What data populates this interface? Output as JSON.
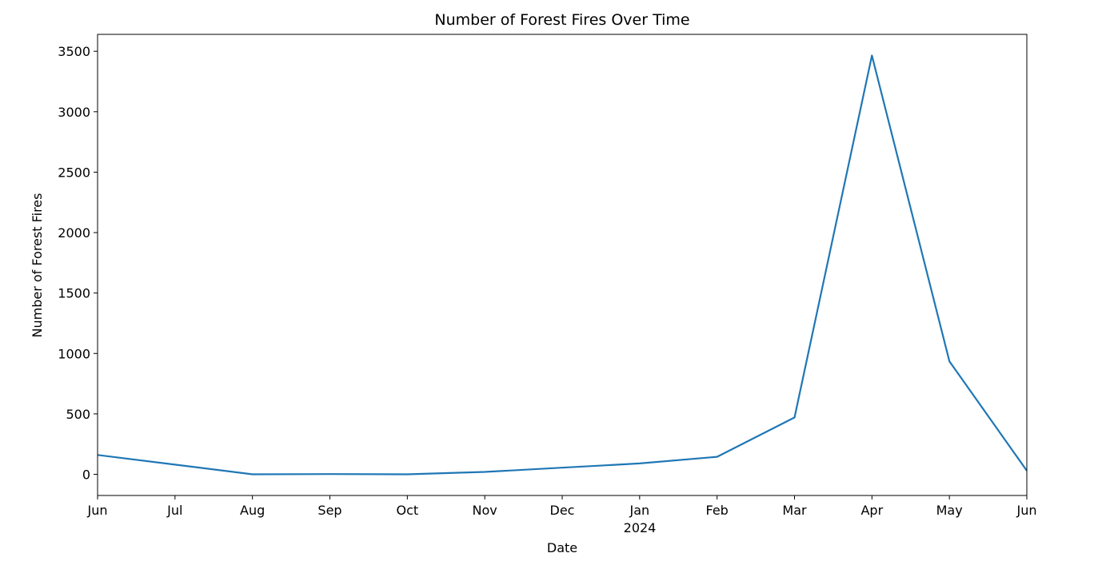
{
  "chart_data": {
    "type": "line",
    "title": "Number of Forest Fires Over Time",
    "xlabel": "Date",
    "ylabel": "Number of Forest Fires",
    "x": [
      "2023-06",
      "2023-07",
      "2023-08",
      "2023-09",
      "2023-10",
      "2023-11",
      "2023-12",
      "2024-01",
      "2024-02",
      "2024-03",
      "2024-04",
      "2024-05",
      "2024-06"
    ],
    "x_tick_labels": [
      "Jun",
      "Jul",
      "Aug",
      "Sep",
      "Oct",
      "Nov",
      "Dec",
      "Jan",
      "Feb",
      "Mar",
      "Apr",
      "May",
      "Jun"
    ],
    "x_year_label": "2024",
    "series": [
      {
        "values": [
          160,
          80,
          0,
          2,
          0,
          20,
          55,
          90,
          145,
          470,
          3465,
          935,
          30
        ]
      }
    ],
    "ylim": [
      -175,
      3640
    ],
    "y_ticks": [
      0,
      500,
      1000,
      1500,
      2000,
      2500,
      3000,
      3500
    ],
    "grid": false,
    "line_color": "#1f77b4"
  }
}
